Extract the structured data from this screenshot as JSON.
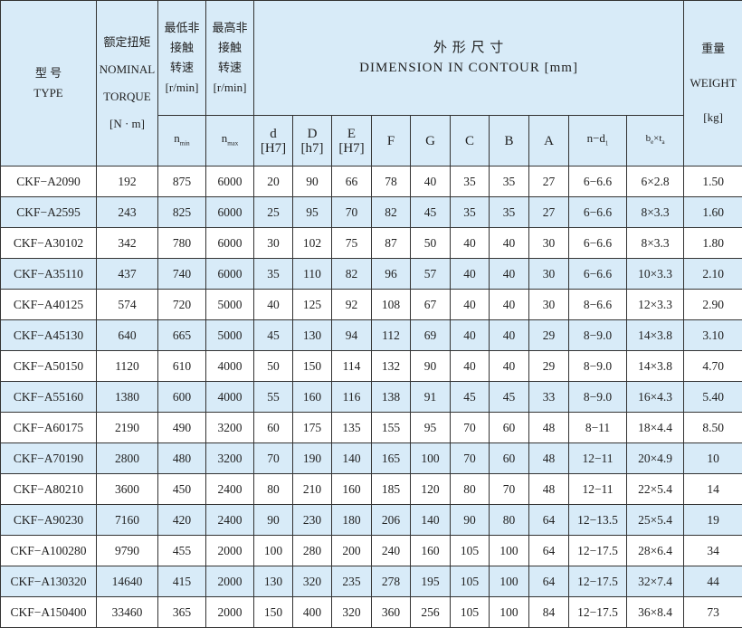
{
  "header": {
    "type_cn": "型 号",
    "type_en": "TYPE",
    "torque_cn": "额定扭矩",
    "torque_en1": "NOMINAL",
    "torque_en2": "TORQUE",
    "torque_unit": "[N · m]",
    "nmin_cn1": "最低非",
    "nmin_cn2": "接触",
    "nmin_cn3": "转速",
    "nmin_unit": "[r/min]",
    "nmax_cn1": "最高非",
    "nmax_cn2": "接触",
    "nmax_cn3": "转速",
    "nmax_unit": "[r/min]",
    "dim_cn": "外 形 尺 寸",
    "dim_en": "DIMENSION IN CONTOUR [mm]",
    "weight_cn": "重量",
    "weight_en": "WEIGHT",
    "weight_unit": "[kg]",
    "nmin": "n",
    "nmin_sub": "min",
    "nmax": "n",
    "nmax_sub": "max",
    "d": "d",
    "d_fit": "[H7]",
    "D": "D",
    "D_fit": "[h7]",
    "E": "E",
    "E_fit": "[H7]",
    "F": "F",
    "G": "G",
    "C": "C",
    "B": "B",
    "A": "A",
    "nd": "n−d",
    "nd_sub": "1",
    "bt_b": "b",
    "bt_b_sub": "e",
    "bt_x": "×",
    "bt_t": "t",
    "bt_t_sub": "a"
  },
  "rows": [
    [
      "CKF−A2090",
      "192",
      "875",
      "6000",
      "20",
      "90",
      "66",
      "78",
      "40",
      "35",
      "35",
      "27",
      "6−6.6",
      "6×2.8",
      "1.50"
    ],
    [
      "CKF−A2595",
      "243",
      "825",
      "6000",
      "25",
      "95",
      "70",
      "82",
      "45",
      "35",
      "35",
      "27",
      "6−6.6",
      "8×3.3",
      "1.60"
    ],
    [
      "CKF−A30102",
      "342",
      "780",
      "6000",
      "30",
      "102",
      "75",
      "87",
      "50",
      "40",
      "40",
      "30",
      "6−6.6",
      "8×3.3",
      "1.80"
    ],
    [
      "CKF−A35110",
      "437",
      "740",
      "6000",
      "35",
      "110",
      "82",
      "96",
      "57",
      "40",
      "40",
      "30",
      "6−6.6",
      "10×3.3",
      "2.10"
    ],
    [
      "CKF−A40125",
      "574",
      "720",
      "5000",
      "40",
      "125",
      "92",
      "108",
      "67",
      "40",
      "40",
      "30",
      "8−6.6",
      "12×3.3",
      "2.90"
    ],
    [
      "CKF−A45130",
      "640",
      "665",
      "5000",
      "45",
      "130",
      "94",
      "112",
      "69",
      "40",
      "40",
      "29",
      "8−9.0",
      "14×3.8",
      "3.10"
    ],
    [
      "CKF−A50150",
      "1120",
      "610",
      "4000",
      "50",
      "150",
      "114",
      "132",
      "90",
      "40",
      "40",
      "29",
      "8−9.0",
      "14×3.8",
      "4.70"
    ],
    [
      "CKF−A55160",
      "1380",
      "600",
      "4000",
      "55",
      "160",
      "116",
      "138",
      "91",
      "45",
      "45",
      "33",
      "8−9.0",
      "16×4.3",
      "5.40"
    ],
    [
      "CKF−A60175",
      "2190",
      "490",
      "3200",
      "60",
      "175",
      "135",
      "155",
      "95",
      "70",
      "60",
      "48",
      "8−11",
      "18×4.4",
      "8.50"
    ],
    [
      "CKF−A70190",
      "2800",
      "480",
      "3200",
      "70",
      "190",
      "140",
      "165",
      "100",
      "70",
      "60",
      "48",
      "12−11",
      "20×4.9",
      "10"
    ],
    [
      "CKF−A80210",
      "3600",
      "450",
      "2400",
      "80",
      "210",
      "160",
      "185",
      "120",
      "80",
      "70",
      "48",
      "12−11",
      "22×5.4",
      "14"
    ],
    [
      "CKF−A90230",
      "7160",
      "420",
      "2400",
      "90",
      "230",
      "180",
      "206",
      "140",
      "90",
      "80",
      "64",
      "12−13.5",
      "25×5.4",
      "19"
    ],
    [
      "CKF−A100280",
      "9790",
      "455",
      "2000",
      "100",
      "280",
      "200",
      "240",
      "160",
      "105",
      "100",
      "64",
      "12−17.5",
      "28×6.4",
      "34"
    ],
    [
      "CKF−A130320",
      "14640",
      "415",
      "2000",
      "130",
      "320",
      "235",
      "278",
      "195",
      "105",
      "100",
      "64",
      "12−17.5",
      "32×7.4",
      "44"
    ],
    [
      "CKF−A150400",
      "33460",
      "365",
      "2000",
      "150",
      "400",
      "320",
      "360",
      "256",
      "105",
      "100",
      "84",
      "12−17.5",
      "36×8.4",
      "73"
    ]
  ]
}
